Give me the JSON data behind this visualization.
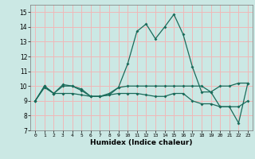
{
  "title": "",
  "xlabel": "Humidex (Indice chaleur)",
  "background_color": "#cbe8e4",
  "grid_color": "#f0b8b8",
  "line_color": "#1a6b5a",
  "xlim": [
    -0.5,
    23.5
  ],
  "ylim": [
    7,
    15.5
  ],
  "yticks": [
    7,
    8,
    9,
    10,
    11,
    12,
    13,
    14,
    15
  ],
  "xticks": [
    0,
    1,
    2,
    3,
    4,
    5,
    6,
    7,
    8,
    9,
    10,
    11,
    12,
    13,
    14,
    15,
    16,
    17,
    18,
    19,
    20,
    21,
    22,
    23
  ],
  "line1_x": [
    0,
    1,
    2,
    3,
    4,
    5,
    6,
    7,
    8,
    9,
    10,
    11,
    12,
    13,
    14,
    15,
    16,
    17,
    18,
    19,
    20,
    21,
    22,
    23
  ],
  "line1_y": [
    9.0,
    10.0,
    9.5,
    10.0,
    10.0,
    9.7,
    9.3,
    9.3,
    9.4,
    9.9,
    11.5,
    13.7,
    14.2,
    13.2,
    14.0,
    14.85,
    13.5,
    11.3,
    9.6,
    9.6,
    8.6,
    8.6,
    7.5,
    10.2
  ],
  "line2_x": [
    0,
    1,
    2,
    3,
    4,
    5,
    6,
    7,
    8,
    9,
    10,
    11,
    12,
    13,
    14,
    15,
    16,
    17,
    18,
    19,
    20,
    21,
    22,
    23
  ],
  "line2_y": [
    9.0,
    10.0,
    9.5,
    10.1,
    10.0,
    9.8,
    9.3,
    9.3,
    9.5,
    9.9,
    10.0,
    10.0,
    10.0,
    10.0,
    10.0,
    10.0,
    10.0,
    10.0,
    10.0,
    9.6,
    10.0,
    10.0,
    10.2,
    10.2
  ],
  "line3_x": [
    0,
    1,
    2,
    3,
    4,
    5,
    6,
    7,
    8,
    9,
    10,
    11,
    12,
    13,
    14,
    15,
    16,
    17,
    18,
    19,
    20,
    21,
    22,
    23
  ],
  "line3_y": [
    9.0,
    9.9,
    9.5,
    9.5,
    9.5,
    9.4,
    9.3,
    9.3,
    9.4,
    9.5,
    9.5,
    9.5,
    9.4,
    9.3,
    9.3,
    9.5,
    9.5,
    9.0,
    8.8,
    8.8,
    8.6,
    8.6,
    8.6,
    9.0
  ]
}
